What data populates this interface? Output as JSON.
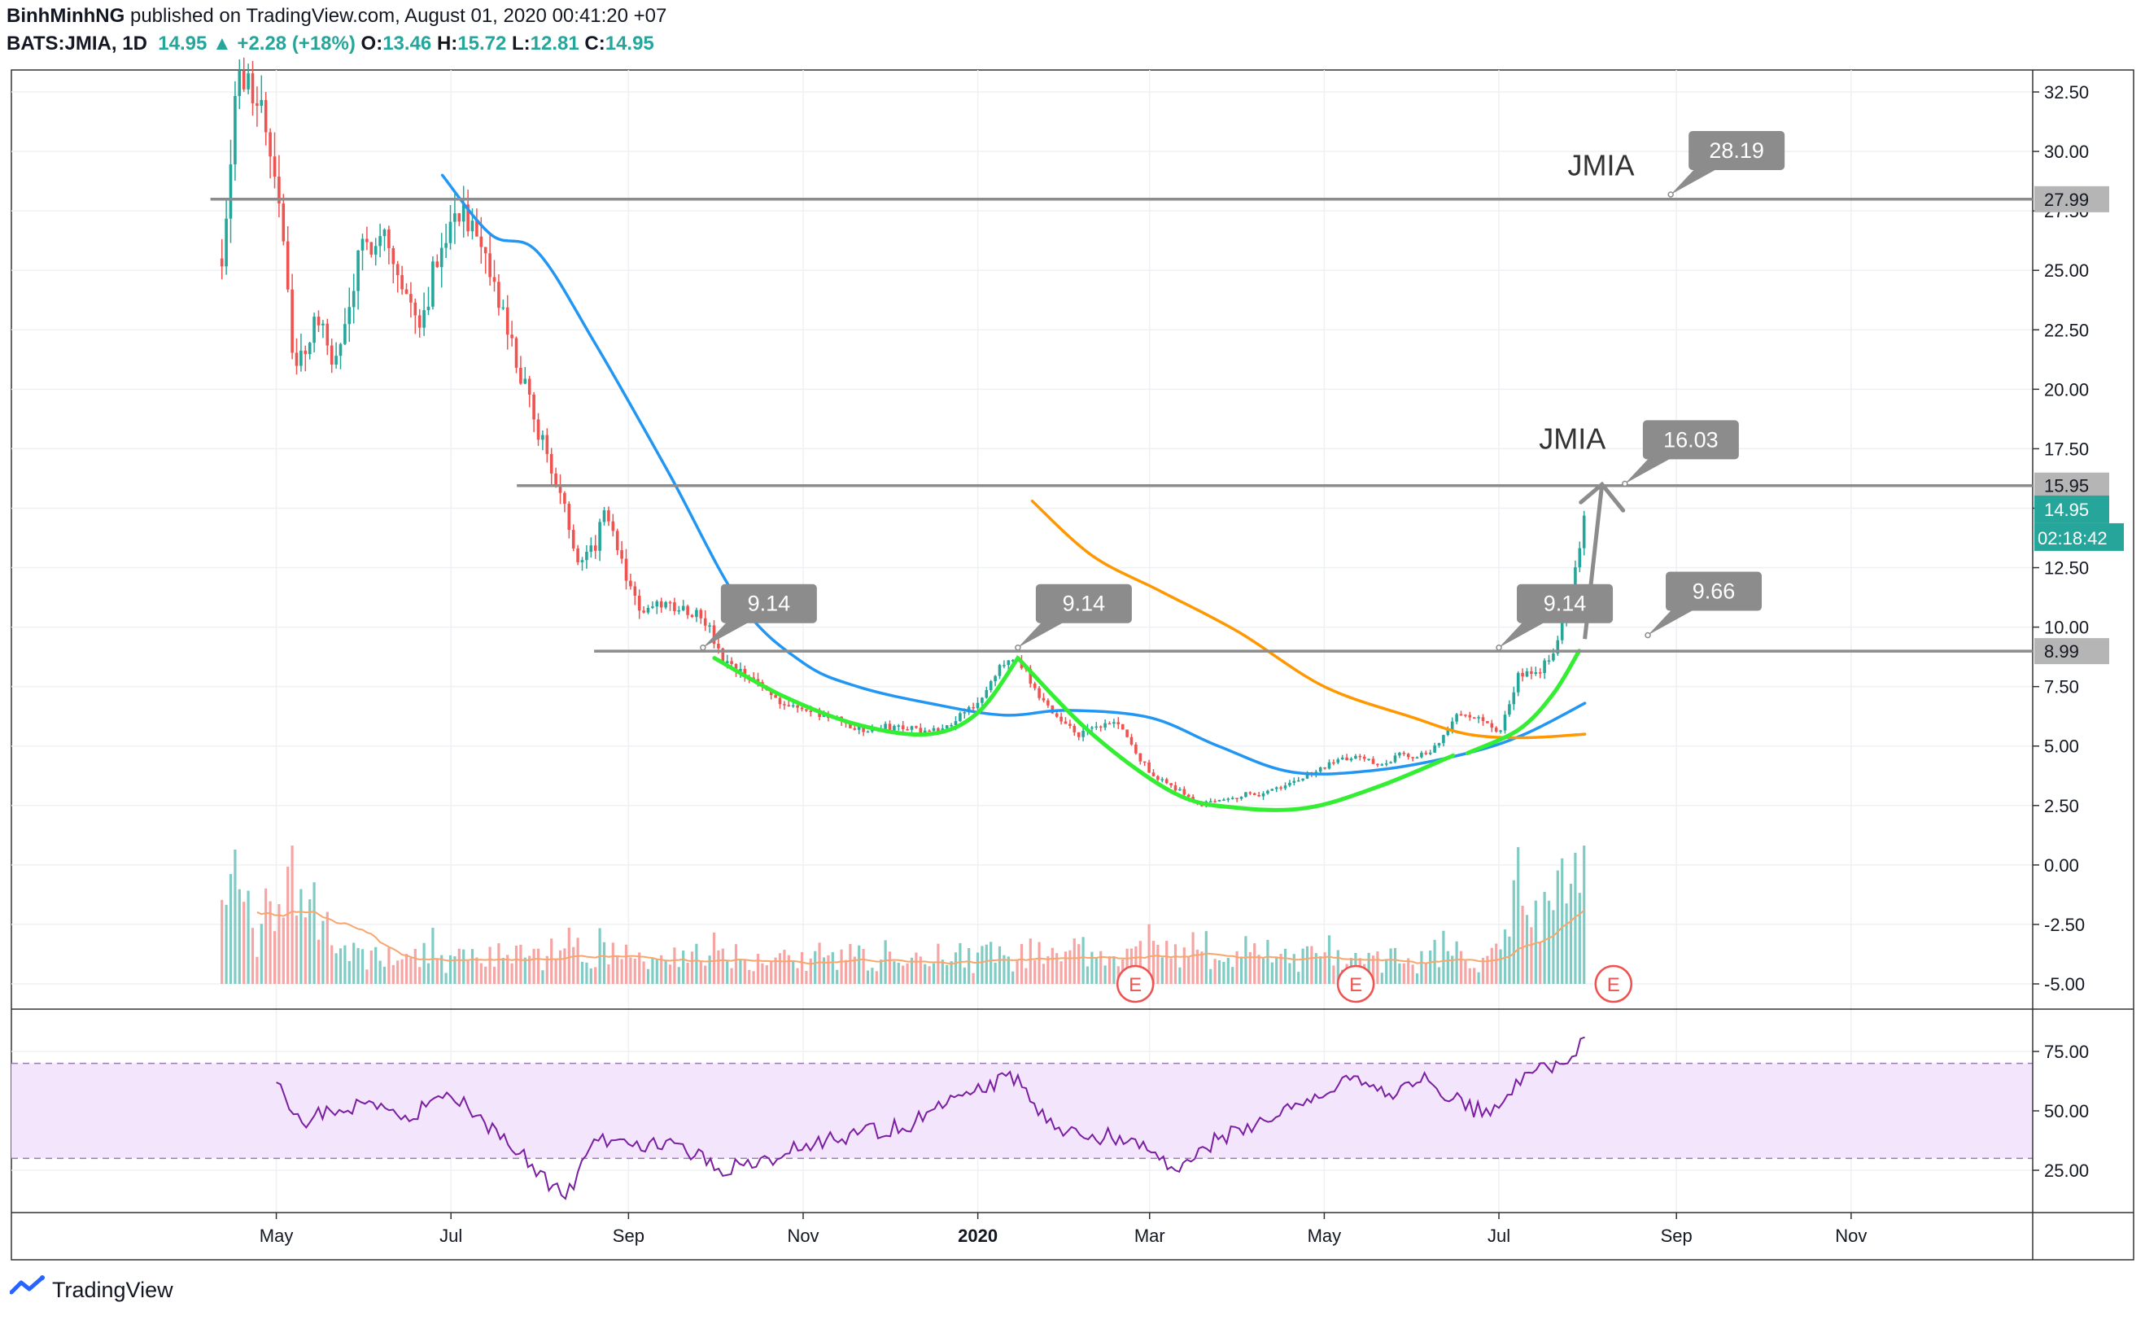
{
  "header": {
    "author": "BinhMinhNG",
    "published": "published on TradingView.com, August 01, 2020 00:41:20 +07",
    "symbol": "BATS:JMIA, 1D",
    "last": "14.95",
    "change": "+2.28 (+18%)",
    "o_label": "O:",
    "o_value": "13.46",
    "h_label": "H:",
    "h_value": "15.72",
    "l_label": "L:",
    "l_value": "12.81",
    "c_label": "C:",
    "c_value": "14.95"
  },
  "footer": {
    "brand": "TradingView"
  },
  "colors": {
    "up": "#26a69a",
    "down": "#ef5350",
    "ma_fast": "#2196f3",
    "ma_slow": "#ff9800",
    "pattern": "#33ee33",
    "level": "#8c8c8c",
    "rsi": "#7b1fa2",
    "rsi_band": "#f3e5fc",
    "callout": "#8c8c8c",
    "price_tag": "#26a69a"
  },
  "chart_data": [
    {
      "type": "candlestick",
      "title": "",
      "x_ticks": [
        "May",
        "Jul",
        "Sep",
        "Nov",
        "2020",
        "Mar",
        "May",
        "Jul",
        "Sep",
        "Nov"
      ],
      "y_ticks": [
        "32.50",
        "30.00",
        "27.50",
        "25.00",
        "22.50",
        "20.00",
        "17.50",
        "15.00",
        "12.50",
        "10.00",
        "7.50",
        "5.00",
        "2.50",
        "0.00",
        "-2.50",
        "-5.00"
      ],
      "ylim": [
        -6.3,
        34.0
      ],
      "last_price": "14.95",
      "countdown": "02:18:42",
      "series": [
        {
          "name": "",
          "kind": "ohlc",
          "close_path": [
            [
              "2019-04-12",
              25.5
            ],
            [
              "2019-04-17",
              33.0
            ],
            [
              "2019-04-25",
              32.5
            ],
            [
              "2019-05-03",
              27.5
            ],
            [
              "2019-05-07",
              20.5
            ],
            [
              "2019-05-15",
              23.0
            ],
            [
              "2019-05-22",
              21.0
            ],
            [
              "2019-05-30",
              25.5
            ],
            [
              "2019-06-07",
              27.0
            ],
            [
              "2019-06-14",
              24.0
            ],
            [
              "2019-06-21",
              23.0
            ],
            [
              "2019-06-28",
              26.5
            ],
            [
              "2019-07-05",
              27.8
            ],
            [
              "2019-07-10",
              26.0
            ],
            [
              "2019-07-17",
              24.0
            ],
            [
              "2019-07-24",
              21.0
            ],
            [
              "2019-07-31",
              18.5
            ],
            [
              "2019-08-07",
              16.0
            ],
            [
              "2019-08-14",
              13.0
            ],
            [
              "2019-08-21",
              13.5
            ],
            [
              "2019-08-23",
              15.5
            ],
            [
              "2019-08-30",
              12.5
            ],
            [
              "2019-09-06",
              10.5
            ],
            [
              "2019-09-13",
              11.0
            ],
            [
              "2019-09-20",
              10.8
            ],
            [
              "2019-09-27",
              10.5
            ],
            [
              "2019-10-04",
              8.5
            ],
            [
              "2019-10-11",
              8.0
            ],
            [
              "2019-10-18",
              7.5
            ],
            [
              "2019-10-25",
              6.8
            ],
            [
              "2019-11-01",
              6.5
            ],
            [
              "2019-11-08",
              6.3
            ],
            [
              "2019-11-15",
              6.0
            ],
            [
              "2019-11-22",
              5.6
            ],
            [
              "2019-11-29",
              5.8
            ],
            [
              "2019-12-06",
              5.8
            ],
            [
              "2019-12-13",
              5.6
            ],
            [
              "2019-12-20",
              5.7
            ],
            [
              "2019-12-27",
              6.5
            ],
            [
              "2020-01-03",
              7.0
            ],
            [
              "2020-01-10",
              8.5
            ],
            [
              "2020-01-15",
              8.8
            ],
            [
              "2020-01-22",
              7.0
            ],
            [
              "2020-01-29",
              6.2
            ],
            [
              "2020-02-05",
              5.5
            ],
            [
              "2020-02-12",
              5.8
            ],
            [
              "2020-02-19",
              6.0
            ],
            [
              "2020-02-26",
              4.5
            ],
            [
              "2020-03-04",
              3.6
            ],
            [
              "2020-03-11",
              3.2
            ],
            [
              "2020-03-18",
              2.5
            ],
            [
              "2020-03-25",
              2.8
            ],
            [
              "2020-04-01",
              2.9
            ],
            [
              "2020-04-08",
              3.0
            ],
            [
              "2020-04-15",
              3.2
            ],
            [
              "2020-04-22",
              3.6
            ],
            [
              "2020-04-29",
              4.0
            ],
            [
              "2020-05-06",
              4.4
            ],
            [
              "2020-05-13",
              4.6
            ],
            [
              "2020-05-20",
              4.2
            ],
            [
              "2020-05-27",
              4.6
            ],
            [
              "2020-06-03",
              4.6
            ],
            [
              "2020-06-10",
              5.0
            ],
            [
              "2020-06-17",
              6.5
            ],
            [
              "2020-06-24",
              6.2
            ],
            [
              "2020-07-01",
              5.5
            ],
            [
              "2020-07-08",
              8.0
            ],
            [
              "2020-07-15",
              8.0
            ],
            [
              "2020-07-22",
              9.5
            ],
            [
              "2020-07-27",
              12.0
            ],
            [
              "2020-07-31",
              14.95
            ]
          ]
        },
        {
          "name": "",
          "kind": "line",
          "color": "ma_fast",
          "points": [
            [
              "2019-06-28",
              29.0
            ],
            [
              "2019-07-15",
              26.5
            ],
            [
              "2019-07-31",
              25.8
            ],
            [
              "2019-08-20",
              22.0
            ],
            [
              "2019-09-15",
              16.5
            ],
            [
              "2019-10-10",
              11.0
            ],
            [
              "2019-11-01",
              8.5
            ],
            [
              "2019-11-20",
              7.5
            ],
            [
              "2019-12-15",
              6.8
            ],
            [
              "2020-01-10",
              6.3
            ],
            [
              "2020-02-01",
              6.5
            ],
            [
              "2020-03-01",
              6.2
            ],
            [
              "2020-03-25",
              5.0
            ],
            [
              "2020-04-20",
              3.9
            ],
            [
              "2020-05-20",
              4.0
            ],
            [
              "2020-06-20",
              4.7
            ],
            [
              "2020-07-10",
              5.5
            ],
            [
              "2020-07-31",
              6.8
            ]
          ]
        },
        {
          "name": "",
          "kind": "line",
          "color": "ma_slow",
          "points": [
            [
              "2020-01-20",
              15.3
            ],
            [
              "2020-02-10",
              13.0
            ],
            [
              "2020-03-05",
              11.5
            ],
            [
              "2020-04-01",
              9.8
            ],
            [
              "2020-05-01",
              7.5
            ],
            [
              "2020-06-01",
              6.2
            ],
            [
              "2020-06-20",
              5.5
            ],
            [
              "2020-07-10",
              5.35
            ],
            [
              "2020-07-31",
              5.5
            ]
          ]
        },
        {
          "name": "",
          "kind": "line",
          "color": "pattern",
          "points": [
            [
              "2019-10-01",
              8.7
            ],
            [
              "2019-10-25",
              7.1
            ],
            [
              "2019-11-20",
              5.9
            ],
            [
              "2019-12-15",
              5.5
            ],
            [
              "2020-01-01",
              6.4
            ],
            [
              "2020-01-15",
              8.7
            ]
          ]
        },
        {
          "name": "",
          "kind": "line",
          "color": "pattern",
          "points": [
            [
              "2020-01-15",
              8.7
            ],
            [
              "2020-02-10",
              5.5
            ],
            [
              "2020-03-10",
              3.0
            ],
            [
              "2020-04-01",
              2.4
            ],
            [
              "2020-04-25",
              2.4
            ],
            [
              "2020-05-20",
              3.3
            ],
            [
              "2020-06-15",
              4.6
            ]
          ]
        },
        {
          "name": "",
          "kind": "line",
          "color": "pattern",
          "points": [
            [
              "2020-06-20",
              4.7
            ],
            [
              "2020-07-08",
              5.7
            ],
            [
              "2020-07-20",
              7.2
            ],
            [
              "2020-07-29",
              9.0
            ]
          ]
        }
      ],
      "levels": [
        {
          "value": "27.99",
          "from": "2019-04-08"
        },
        {
          "value": "15.95",
          "from": "2019-07-24"
        },
        {
          "value": "8.99",
          "from": "2019-08-20"
        }
      ],
      "callouts": [
        {
          "text": "9.14",
          "anchor": [
            "2019-09-27",
            9.14
          ]
        },
        {
          "text": "9.14",
          "anchor": [
            "2020-01-15",
            9.14
          ]
        },
        {
          "text": "9.14",
          "anchor": [
            "2020-07-01",
            9.14
          ]
        },
        {
          "text": "16.03",
          "anchor": [
            "2020-08-14",
            16.03
          ]
        },
        {
          "text": "28.19",
          "anchor": [
            "2020-08-30",
            28.19
          ]
        },
        {
          "text": "9.66",
          "anchor": [
            "2020-08-22",
            9.66
          ]
        }
      ],
      "labels": [
        {
          "text": "JMIA",
          "at": [
            "2020-07-25",
            29.0
          ]
        },
        {
          "text": "JMIA",
          "at": [
            "2020-07-15",
            17.5
          ]
        }
      ],
      "earnings_marker": "E",
      "earnings_dates": [
        "2020-02-25",
        "2020-05-12",
        "2020-08-10"
      ],
      "arrow": {
        "from": [
          "2020-07-31",
          9.5
        ],
        "to": [
          "2020-08-06",
          16.0
        ]
      }
    },
    {
      "type": "line",
      "title": "",
      "y_ticks": [
        "75.00",
        "50.00",
        "25.00"
      ],
      "ylim": [
        10,
        88
      ],
      "band": [
        30,
        70
      ],
      "series": [
        {
          "name": "",
          "values": [
            [
              "2019-05-01",
              62
            ],
            [
              "2019-05-10",
              45
            ],
            [
              "2019-05-20",
              50
            ],
            [
              "2019-06-01",
              53
            ],
            [
              "2019-06-15",
              48
            ],
            [
              "2019-07-01",
              56
            ],
            [
              "2019-07-10",
              48
            ],
            [
              "2019-07-25",
              32
            ],
            [
              "2019-08-10",
              13
            ],
            [
              "2019-08-20",
              38
            ],
            [
              "2019-09-01",
              36
            ],
            [
              "2019-09-20",
              36
            ],
            [
              "2019-10-01",
              25
            ],
            [
              "2019-10-20",
              30
            ],
            [
              "2019-11-05",
              36
            ],
            [
              "2019-11-20",
              40
            ],
            [
              "2019-12-10",
              45
            ],
            [
              "2019-12-28",
              58
            ],
            [
              "2020-01-15",
              65
            ],
            [
              "2020-01-25",
              45
            ],
            [
              "2020-02-10",
              40
            ],
            [
              "2020-02-25",
              38
            ],
            [
              "2020-03-10",
              25
            ],
            [
              "2020-03-25",
              38
            ],
            [
              "2020-04-10",
              46
            ],
            [
              "2020-04-25",
              55
            ],
            [
              "2020-05-10",
              63
            ],
            [
              "2020-05-25",
              55
            ],
            [
              "2020-06-05",
              66
            ],
            [
              "2020-06-15",
              55
            ],
            [
              "2020-06-28",
              48
            ],
            [
              "2020-07-10",
              66
            ],
            [
              "2020-07-25",
              70
            ],
            [
              "2020-07-31",
              81
            ]
          ]
        }
      ]
    }
  ]
}
